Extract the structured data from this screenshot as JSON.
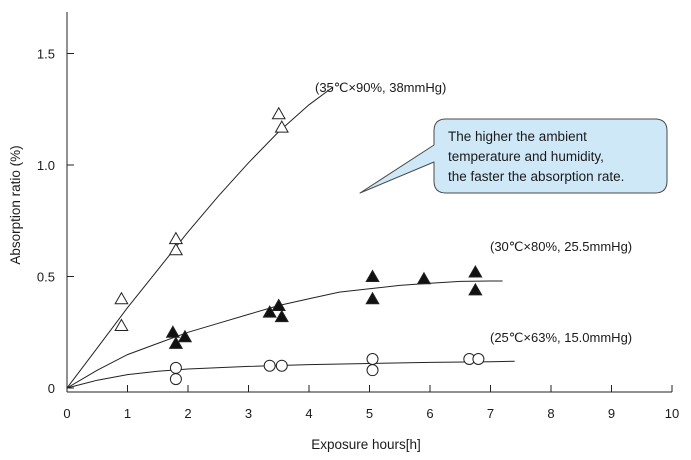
{
  "chart_data": {
    "type": "scatter",
    "title": "",
    "xlabel": "Exposure hours[h]",
    "ylabel": "Absorption ratio (%)",
    "xlim": [
      0,
      10
    ],
    "ylim": [
      0,
      1.65
    ],
    "x_ticks": [
      0,
      1,
      2,
      3,
      4,
      5,
      6,
      7,
      8,
      9,
      10
    ],
    "y_ticks": [
      0,
      0.5,
      1.0,
      1.5
    ],
    "y_tick_labels": [
      "0",
      "0.5",
      "1.0",
      "1.5"
    ],
    "grid": false,
    "series": [
      {
        "name": "(35℃×90%, 38mmHg)",
        "marker": "open-triangle",
        "points": [
          [
            0.9,
            0.4
          ],
          [
            0.9,
            0.28
          ],
          [
            1.8,
            0.67
          ],
          [
            1.8,
            0.62
          ],
          [
            3.5,
            1.23
          ],
          [
            3.55,
            1.17
          ]
        ],
        "curve": [
          [
            0,
            0
          ],
          [
            0.5,
            0.18
          ],
          [
            1.0,
            0.36
          ],
          [
            1.5,
            0.53
          ],
          [
            2.0,
            0.7
          ],
          [
            2.5,
            0.86
          ],
          [
            3.0,
            1.01
          ],
          [
            3.5,
            1.15
          ],
          [
            4.0,
            1.27
          ],
          [
            4.4,
            1.35
          ]
        ]
      },
      {
        "name": "(30℃×80%, 25.5mmHg)",
        "marker": "filled-triangle",
        "points": [
          [
            1.75,
            0.25
          ],
          [
            1.8,
            0.2
          ],
          [
            1.95,
            0.23
          ],
          [
            3.35,
            0.34
          ],
          [
            3.5,
            0.37
          ],
          [
            3.55,
            0.32
          ],
          [
            5.05,
            0.5
          ],
          [
            5.05,
            0.4
          ],
          [
            5.9,
            0.49
          ],
          [
            6.75,
            0.52
          ],
          [
            6.75,
            0.44
          ]
        ],
        "curve": [
          [
            0,
            0
          ],
          [
            0.5,
            0.08
          ],
          [
            1.0,
            0.15
          ],
          [
            1.5,
            0.2
          ],
          [
            2.0,
            0.25
          ],
          [
            2.5,
            0.29
          ],
          [
            3.0,
            0.33
          ],
          [
            3.5,
            0.37
          ],
          [
            4.0,
            0.4
          ],
          [
            4.5,
            0.43
          ],
          [
            5.0,
            0.445
          ],
          [
            5.5,
            0.46
          ],
          [
            6.0,
            0.47
          ],
          [
            6.5,
            0.478
          ],
          [
            7.0,
            0.48
          ],
          [
            7.2,
            0.48
          ]
        ]
      },
      {
        "name": "(25℃×63%, 15.0mmHg)",
        "marker": "open-circle",
        "points": [
          [
            1.8,
            0.09
          ],
          [
            1.8,
            0.04
          ],
          [
            3.35,
            0.1
          ],
          [
            3.55,
            0.1
          ],
          [
            5.05,
            0.13
          ],
          [
            5.05,
            0.08
          ],
          [
            6.65,
            0.13
          ],
          [
            6.8,
            0.13
          ]
        ],
        "curve": [
          [
            0,
            0
          ],
          [
            0.5,
            0.035
          ],
          [
            1.0,
            0.06
          ],
          [
            1.5,
            0.075
          ],
          [
            2.0,
            0.085
          ],
          [
            3.0,
            0.097
          ],
          [
            4.0,
            0.105
          ],
          [
            5.0,
            0.11
          ],
          [
            6.0,
            0.115
          ],
          [
            7.0,
            0.118
          ],
          [
            7.4,
            0.12
          ]
        ]
      }
    ],
    "annotations": [
      {
        "text_lines": [
          "The higher the ambient",
          "temperature and humidity,",
          "the faster the absorption rate."
        ],
        "fill": "#cfe8f7",
        "stroke": "#4a4a4a"
      }
    ]
  }
}
